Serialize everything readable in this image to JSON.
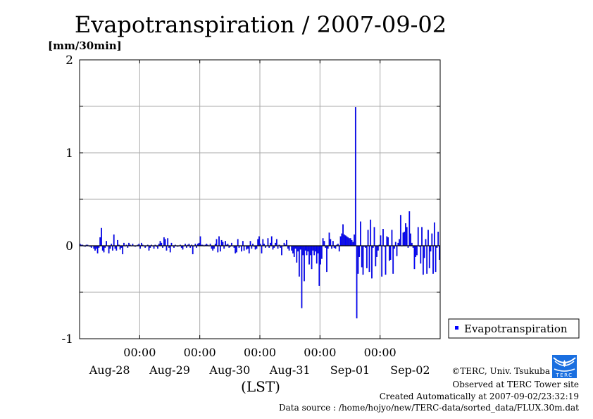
{
  "chart_data": {
    "type": "bar",
    "title": "Evapotranspiration / 2007-09-02",
    "ylabel": "[mm/30min]",
    "xlabel": "(LST)",
    "ylim": [
      -1,
      2
    ],
    "yticks": [
      2,
      1,
      0,
      -1
    ],
    "ygrid": [
      1.5,
      1,
      0.5,
      0,
      -0.5
    ],
    "grid": true,
    "x_start": "Aug-28 00:00",
    "interval_minutes": 30,
    "days": 6,
    "time_tick_label": "00:00",
    "day_labels": [
      "Aug-28",
      "Aug-29",
      "Aug-30",
      "Aug-31",
      "Sep-01",
      "Sep-02"
    ],
    "legend": {
      "position": "bottom-right outside",
      "entries": [
        "Evapotranspiration"
      ]
    },
    "series": [
      {
        "name": "Evapotranspiration",
        "color": "#0000ff",
        "values": [
          0.02,
          0.01,
          0.01,
          0,
          -0.01,
          0.01,
          0.01,
          0,
          -0.01,
          -0.02,
          0,
          -0.03,
          -0.05,
          -0.03,
          -0.08,
          -0.02,
          0.09,
          0.19,
          -0.05,
          -0.07,
          -0.02,
          0.05,
          0,
          -0.08,
          -0.03,
          0.02,
          -0.05,
          0.12,
          -0.03,
          -0.05,
          0.06,
          0.01,
          -0.04,
          -0.02,
          -0.09,
          0.03,
          0,
          0.01,
          -0.02,
          0.03,
          0.01,
          0,
          0.02,
          0,
          -0.01,
          0,
          0.01,
          0.02,
          -0.03,
          0.03,
          0.01,
          0,
          -0.02,
          0,
          0.01,
          -0.05,
          -0.02,
          0.01,
          0,
          -0.03,
          0.01,
          -0.01,
          -0.03,
          0.02,
          0.05,
          0.03,
          -0.02,
          0.09,
          0.07,
          -0.05,
          0.08,
          -0.02,
          -0.07,
          0.03,
          0,
          -0.02,
          0.01,
          0,
          -0.01,
          0,
          0.01,
          -0.02,
          -0.04,
          0,
          0.02,
          -0.02,
          0.01,
          0.02,
          -0.02,
          0.01,
          -0.09,
          0,
          0.02,
          -0.02,
          0.02,
          0.03,
          0.1,
          0.01,
          0.01,
          0,
          0.01,
          0.02,
          0.01,
          0,
          0.02,
          -0.03,
          -0.05,
          -0.03,
          0.02,
          0.07,
          -0.07,
          0.1,
          -0.06,
          0.06,
          0.04,
          -0.03,
          0.05,
          0.01,
          0.02,
          -0.02,
          -0.01,
          0.03,
          0,
          -0.02,
          -0.08,
          -0.07,
          0.07,
          -0.02,
          0,
          -0.06,
          0.05,
          -0.05,
          0,
          -0.04,
          -0.03,
          -0.08,
          0.05,
          -0.03,
          0.02,
          -0.01,
          -0.04,
          -0.03,
          0.07,
          0.1,
          0.02,
          -0.08,
          0.07,
          0.02,
          -0.02,
          0,
          0.08,
          -0.02,
          0.03,
          0.1,
          -0.04,
          -0.02,
          0.03,
          0.07,
          -0.03,
          0.01,
          -0.02,
          -0.1,
          0,
          0.03,
          0.01,
          0.06,
          -0.03,
          -0.05,
          0,
          -0.05,
          -0.08,
          -0.12,
          -0.03,
          -0.18,
          -0.06,
          -0.33,
          -0.04,
          -0.67,
          -0.1,
          -0.38,
          -0.05,
          -0.1,
          -0.06,
          -0.2,
          -0.1,
          -0.25,
          -0.05,
          -0.1,
          -0.06,
          -0.19,
          -0.08,
          -0.43,
          -0.2,
          -0.14,
          0.08,
          0.05,
          -0.02,
          -0.28,
          -0.03,
          0.14,
          0.07,
          -0.03,
          0.05,
          -0.02,
          -0.03,
          0.01,
          0.02,
          -0.06,
          0.1,
          0.13,
          0.23,
          0.12,
          0.11,
          0.1,
          0.09,
          0.08,
          0.08,
          0.06,
          0.04,
          0.12,
          1.49,
          -0.78,
          -0.3,
          -0.12,
          0.26,
          -0.23,
          -0.31,
          -0.01,
          -0.02,
          -0.24,
          0.17,
          -0.28,
          0.28,
          -0.35,
          -0.02,
          0.2,
          -0.22,
          -0.12,
          -0.05,
          0.01,
          0.11,
          -0.33,
          0.18,
          -0.01,
          -0.31,
          0.1,
          0.09,
          -0.16,
          -0.15,
          0.17,
          -0.3,
          -0.03,
          0.04,
          -0.11,
          0.03,
          0.07,
          0.33,
          0,
          0.14,
          0.15,
          0.24,
          0.2,
          -0.02,
          0.37,
          0.13,
          0.03,
          -0.02,
          -0.25,
          -0.12,
          -0.1,
          0.2,
          -0.01,
          -0.19,
          0.2,
          -0.31,
          -0.13,
          0.07,
          -0.3,
          0.17,
          -0.24,
          -0.06,
          0.13,
          -0.3,
          0.25,
          -0.28,
          -0.02,
          0.15,
          -0.15
        ]
      }
    ]
  },
  "footer": {
    "copyright": "©TERC, Univ. Tsukuba",
    "observed": "Observed at TERC Tower site",
    "created": "Created Automatically at 2007-09-02/23:32:19",
    "source": "Data source : /home/hojyo/new/TERC-data/sorted_data/FLUX.30m.dat",
    "logo_text": "TERC"
  }
}
